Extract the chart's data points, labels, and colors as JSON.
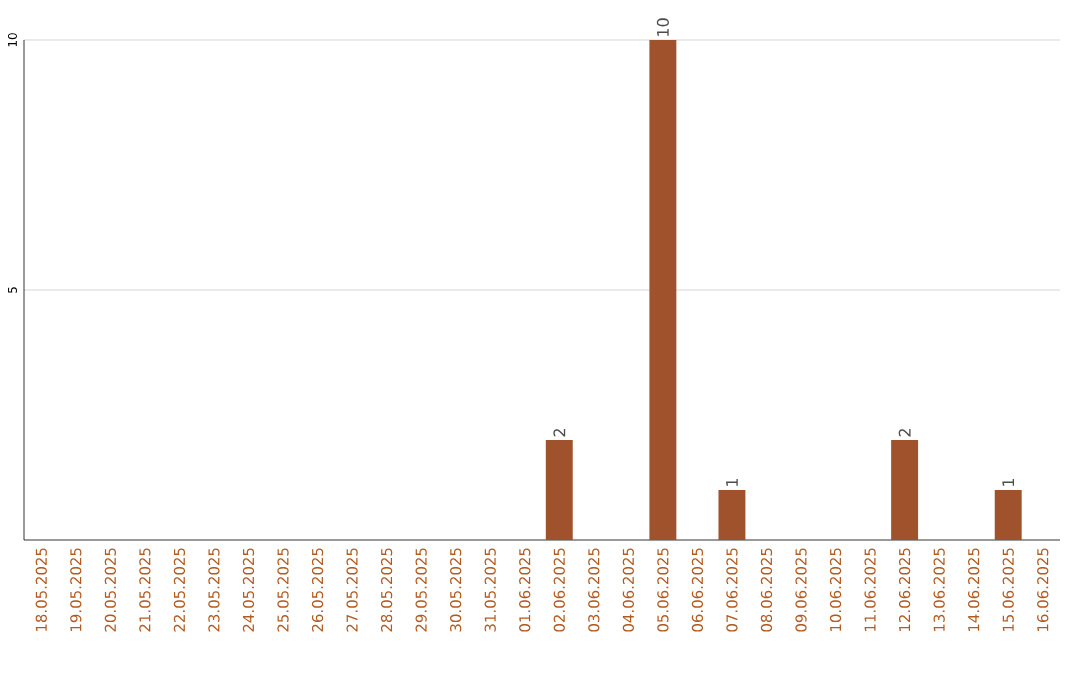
{
  "chart_data": {
    "type": "bar",
    "categories": [
      "18.05.2025",
      "19.05.2025",
      "20.05.2025",
      "21.05.2025",
      "22.05.2025",
      "23.05.2025",
      "24.05.2025",
      "25.05.2025",
      "26.05.2025",
      "27.05.2025",
      "28.05.2025",
      "29.05.2025",
      "30.05.2025",
      "31.05.2025",
      "01.06.2025",
      "02.06.2025",
      "03.06.2025",
      "04.06.2025",
      "05.06.2025",
      "06.06.2025",
      "07.06.2025",
      "08.06.2025",
      "09.06.2025",
      "10.06.2025",
      "11.06.2025",
      "12.06.2025",
      "13.06.2025",
      "14.06.2025",
      "15.06.2025",
      "16.06.2025"
    ],
    "values": [
      0,
      0,
      0,
      0,
      0,
      0,
      0,
      0,
      0,
      0,
      0,
      0,
      0,
      0,
      0,
      2,
      0,
      0,
      10,
      0,
      1,
      0,
      0,
      0,
      0,
      2,
      0,
      0,
      1,
      0
    ],
    "value_labels": [
      null,
      null,
      null,
      null,
      null,
      null,
      null,
      null,
      null,
      null,
      null,
      null,
      null,
      null,
      null,
      "2",
      null,
      null,
      "10",
      null,
      "1",
      null,
      null,
      null,
      null,
      "2",
      null,
      null,
      "1",
      null
    ],
    "color": "#a0522d",
    "ylim": [
      0,
      10
    ],
    "yticks": [
      5,
      10
    ],
    "grid": "y"
  }
}
